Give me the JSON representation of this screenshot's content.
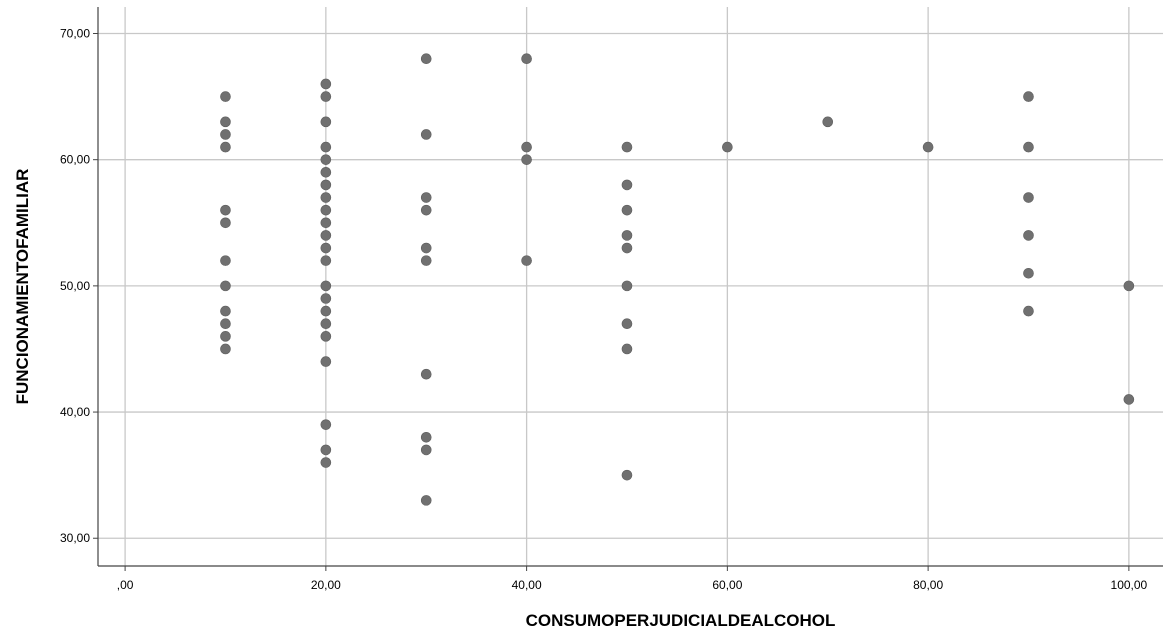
{
  "chart_data": {
    "type": "scatter",
    "title": "",
    "xlabel": "CONSUMOPERJUDICIALDEALCOHOL",
    "ylabel": "FUNCIONAMIENTOFAMILIAR",
    "xlim": [
      -2.7,
      103.4
    ],
    "ylim": [
      27.8,
      72.1
    ],
    "x_ticks": [
      0,
      20,
      40,
      60,
      80,
      100
    ],
    "x_tick_labels": [
      ",00",
      "20,00",
      "40,00",
      "60,00",
      "80,00",
      "100,00"
    ],
    "y_ticks": [
      30,
      40,
      50,
      60,
      70
    ],
    "y_tick_labels": [
      "30,00",
      "40,00",
      "50,00",
      "60,00",
      "70,00"
    ],
    "grid": true,
    "marker_color": "#707070",
    "grid_color": "#c8c8c8",
    "points": [
      [
        10,
        65
      ],
      [
        10,
        63
      ],
      [
        10,
        62
      ],
      [
        10,
        61
      ],
      [
        10,
        56
      ],
      [
        10,
        55
      ],
      [
        10,
        52
      ],
      [
        10,
        50
      ],
      [
        10,
        48
      ],
      [
        10,
        47
      ],
      [
        10,
        46
      ],
      [
        10,
        45
      ],
      [
        20,
        66
      ],
      [
        20,
        65
      ],
      [
        20,
        63
      ],
      [
        20,
        61
      ],
      [
        20,
        60
      ],
      [
        20,
        59
      ],
      [
        20,
        58
      ],
      [
        20,
        57
      ],
      [
        20,
        56
      ],
      [
        20,
        55
      ],
      [
        20,
        54
      ],
      [
        20,
        53
      ],
      [
        20,
        52
      ],
      [
        20,
        50
      ],
      [
        20,
        49
      ],
      [
        20,
        48
      ],
      [
        20,
        47
      ],
      [
        20,
        46
      ],
      [
        20,
        44
      ],
      [
        20,
        39
      ],
      [
        20,
        37
      ],
      [
        20,
        36
      ],
      [
        30,
        68
      ],
      [
        30,
        62
      ],
      [
        30,
        57
      ],
      [
        30,
        56
      ],
      [
        30,
        53
      ],
      [
        30,
        52
      ],
      [
        30,
        43
      ],
      [
        30,
        38
      ],
      [
        30,
        37
      ],
      [
        30,
        33
      ],
      [
        40,
        68
      ],
      [
        40,
        61
      ],
      [
        40,
        60
      ],
      [
        40,
        52
      ],
      [
        50,
        61
      ],
      [
        50,
        58
      ],
      [
        50,
        56
      ],
      [
        50,
        54
      ],
      [
        50,
        53
      ],
      [
        50,
        50
      ],
      [
        50,
        47
      ],
      [
        50,
        45
      ],
      [
        50,
        35
      ],
      [
        60,
        61
      ],
      [
        70,
        63
      ],
      [
        80,
        61
      ],
      [
        90,
        65
      ],
      [
        90,
        61
      ],
      [
        90,
        57
      ],
      [
        90,
        54
      ],
      [
        90,
        51
      ],
      [
        90,
        48
      ],
      [
        100,
        50
      ],
      [
        100,
        41
      ]
    ]
  }
}
